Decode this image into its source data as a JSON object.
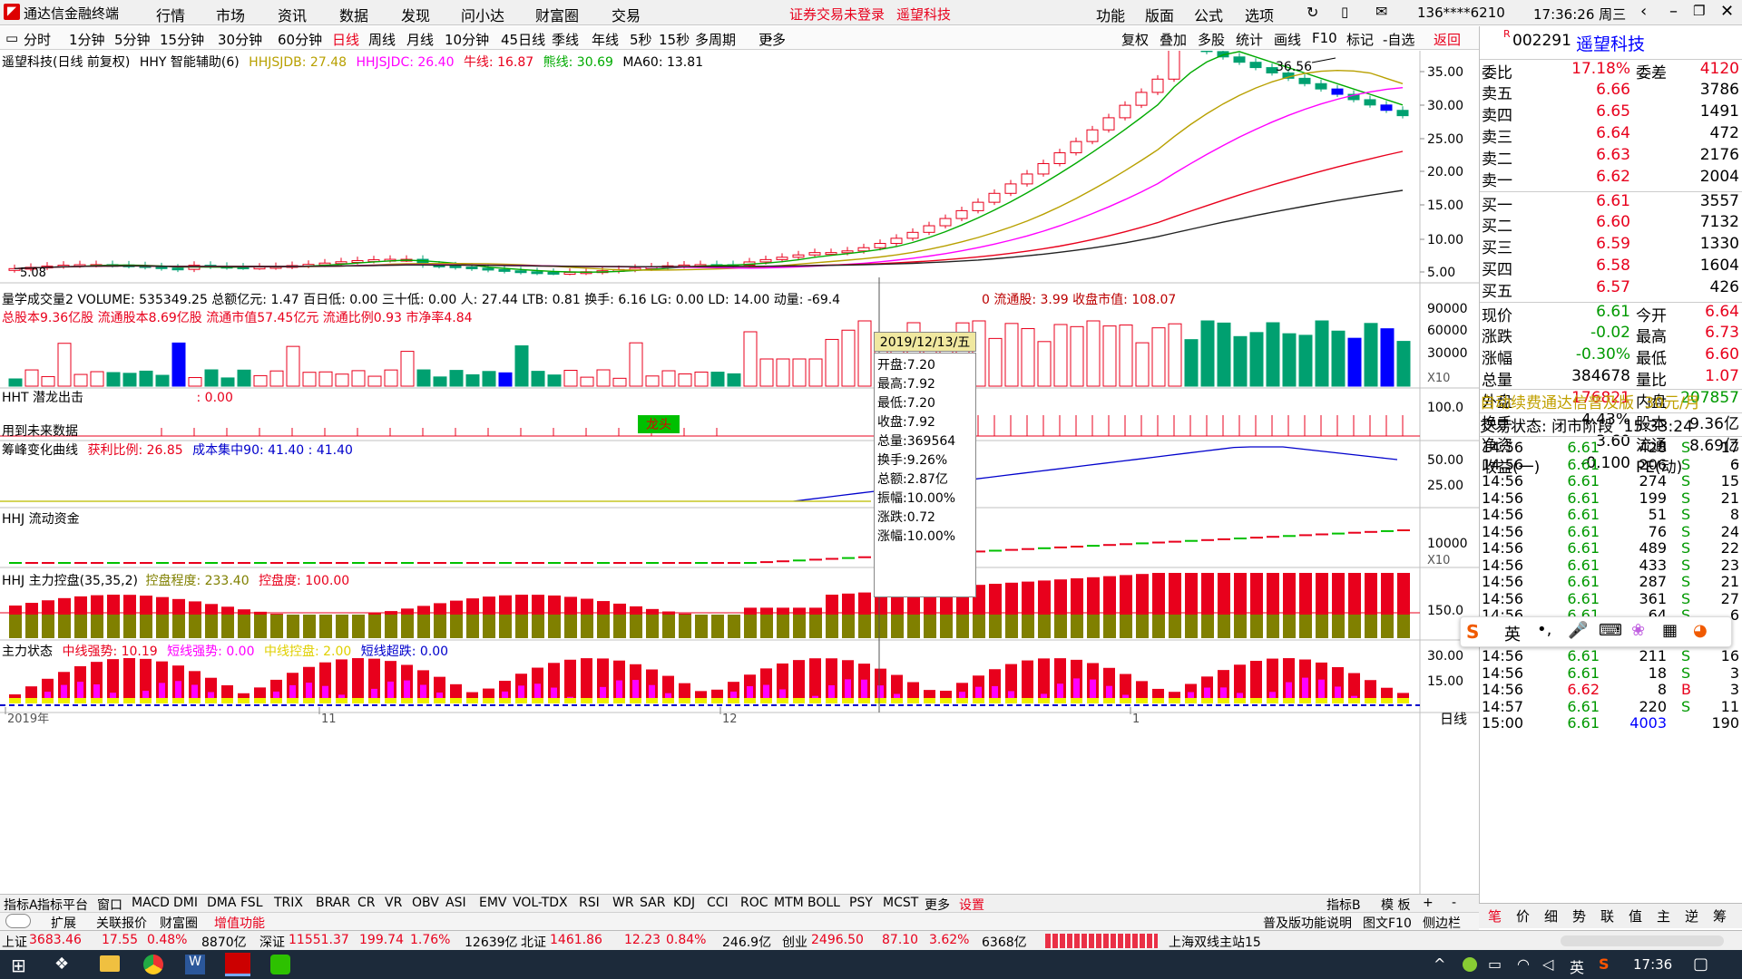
{
  "titlebar": {
    "app_title": "通达信金融终端",
    "menu": [
      "行情",
      "市场",
      "资讯",
      "数据",
      "发现",
      "问小达",
      "财富圈",
      "交易"
    ],
    "notice": "证券交易未登录",
    "stock_name": "遥望科技",
    "right_menu": [
      "功能",
      "版面",
      "公式",
      "选项"
    ],
    "account": "136****6210",
    "clock": "17:36:26 周三"
  },
  "periods": [
    "分时",
    "1分钟",
    "5分钟",
    "15分钟",
    "30分钟",
    "60分钟",
    "日线",
    "周线",
    "月线",
    "10分钟",
    "45日线",
    "季线",
    "年线",
    "5秒",
    "15秒",
    "多周期",
    "更多"
  ],
  "toolbar_right": [
    "复权",
    "叠加",
    "多股",
    "统计",
    "画线",
    "F10",
    "标记",
    "-自选",
    "返回"
  ],
  "main_header": {
    "title": "遥望科技(日线 前复权)",
    "indicator": "HHY 智能辅助(6)",
    "v1": "HHJSJDB: 27.48",
    "v2": "HHJSJDC: 26.40",
    "v3": "牛线: 16.87",
    "v4": "熊线: 30.69",
    "v5": "MA60: 13.81"
  },
  "price_axis": [
    "35.00",
    "30.00",
    "25.00",
    "20.00",
    "15.00",
    "10.00",
    "5.00"
  ],
  "high_label": "36.56",
  "low_label": "5.08",
  "volume_header": {
    "line1": "量学成交量2 VOLUME: 535349.25 总额亿元: 1.47 百日低: 0.00 三十低: 0.00 人: 27.44 LTB: 0.81 换手: 6.16 LG: 0.00 LD: 14.00 动量: -69.4",
    "line1b": "0 流通股: 3.99 收盘市值: 108.07",
    "line2": "总股本9.36亿股   流通股本8.69亿股   流通市值57.45亿元  流通比例0.93   市净率4.84"
  },
  "volume_axis": [
    "90000",
    "60000",
    "30000"
  ],
  "x10": "X10",
  "hht": {
    "title": "HHT 潜龙出击",
    "value": ": 0.00",
    "note": "用到未来数据",
    "tag": "龙头",
    "axis": "100.0"
  },
  "chip": {
    "title": "筹峰变化曲线",
    "v1": "获利比例: 26.85",
    "v2": "成本集中90: 41.40 : 41.40",
    "axis": [
      "50.00",
      "25.00"
    ]
  },
  "flow": {
    "title": "HHJ 流动资金",
    "axis": "10000",
    "x10": "X10"
  },
  "control": {
    "title": "HHJ 主力控盘(35,35,2)",
    "v1": "控盘程度: 233.40",
    "v2": "控盘度: 100.00",
    "axis": "150.0"
  },
  "status_ind": {
    "title": "主力状态",
    "v1": "中线强势: 10.19",
    "v2": "短线强势: 0.00",
    "v3": "中线控盘: 2.00",
    "v4": "短线超跌: 0.00",
    "axis": [
      "30.00",
      "15.00"
    ]
  },
  "x_axis": [
    "2019年",
    "11",
    "12",
    "1"
  ],
  "x_period": "日线",
  "tooltip": {
    "date": "2019/12/13/五",
    "rows": [
      "开盘:7.20",
      "最高:7.92",
      "最低:7.20",
      "收盘:7.92",
      "总量:369564",
      "换手:9.26%",
      "总额:2.87亿",
      "振幅:10.00%",
      "涨跌:0.72",
      "涨幅:10.00%"
    ]
  },
  "bottom_tabs": [
    "指标A",
    "指标平台",
    "窗口",
    "MACD",
    "DMI",
    "DMA",
    "FSL",
    "TRIX",
    "BRAR",
    "CR",
    "VR",
    "OBV",
    "ASI",
    "EMV",
    "VOL-TDX",
    "RSI",
    "WR",
    "SAR",
    "KDJ",
    "CCI",
    "ROC",
    "MTM",
    "BOLL",
    "PSY",
    "MCST",
    "更多",
    "设置"
  ],
  "bottom_tabs_right": [
    "指标B",
    "模 板",
    "+",
    "-"
  ],
  "bottom_tabs2": [
    "扩展",
    "关联报价",
    "财富圈",
    "增值功能"
  ],
  "bottom_tabs2_right": [
    "普及版功能说明",
    "图文F10",
    "侧边栏"
  ],
  "quote": {
    "code": "002291",
    "name": "遥望科技",
    "weibi_label": "委比",
    "weibi": "17.18%",
    "weicha_label": "委差",
    "weicha": "4120",
    "asks": [
      {
        "label": "卖五",
        "price": "6.66",
        "vol": "3786"
      },
      {
        "label": "卖四",
        "price": "6.65",
        "vol": "1491"
      },
      {
        "label": "卖三",
        "price": "6.64",
        "vol": "472"
      },
      {
        "label": "卖二",
        "price": "6.63",
        "vol": "2176"
      },
      {
        "label": "卖一",
        "price": "6.62",
        "vol": "2004"
      }
    ],
    "bids": [
      {
        "label": "买一",
        "price": "6.61",
        "vol": "3557"
      },
      {
        "label": "买二",
        "price": "6.60",
        "vol": "7132"
      },
      {
        "label": "买三",
        "price": "6.59",
        "vol": "1330"
      },
      {
        "label": "买四",
        "price": "6.58",
        "vol": "1604"
      },
      {
        "label": "买五",
        "price": "6.57",
        "vol": "426"
      }
    ],
    "stats": [
      {
        "l1": "现价",
        "v1": "6.61",
        "l2": "今开",
        "v2": "6.64"
      },
      {
        "l1": "涨跌",
        "v1": "-0.02",
        "l2": "最高",
        "v2": "6.73"
      },
      {
        "l1": "涨幅",
        "v1": "-0.30%",
        "l2": "最低",
        "v2": "6.60"
      },
      {
        "l1": "总量",
        "v1": "384678",
        "l2": "量比",
        "v2": "1.07"
      },
      {
        "l1": "外盘",
        "v1": "176821",
        "l2": "内盘",
        "v2": "207857"
      },
      {
        "l1": "换手",
        "v1": "4.43%",
        "l2": "股本",
        "v2": "9.36亿"
      },
      {
        "l1": "净资",
        "v1": "3.60",
        "l2": "流通",
        "v2": "8.69亿"
      },
      {
        "l1": "收益(一)",
        "v1": "-0.100",
        "l2": "PE(动)",
        "v2": "-"
      }
    ],
    "promo": "自动续费通达信普及版",
    "promo_price": "30元/月",
    "trade_state_label": "交易状态:",
    "trade_state": "闭市阶段",
    "trade_time": "15:33:24"
  },
  "ticks": [
    {
      "t": "14:56",
      "p": "6.61",
      "v": "428",
      "s": "S",
      "n": "17"
    },
    {
      "t": "14:56",
      "p": "6.61",
      "v": "206",
      "s": "S",
      "n": "6"
    },
    {
      "t": "14:56",
      "p": "6.61",
      "v": "274",
      "s": "S",
      "n": "15"
    },
    {
      "t": "14:56",
      "p": "6.61",
      "v": "199",
      "s": "S",
      "n": "21"
    },
    {
      "t": "14:56",
      "p": "6.61",
      "v": "51",
      "s": "S",
      "n": "8"
    },
    {
      "t": "14:56",
      "p": "6.61",
      "v": "76",
      "s": "S",
      "n": "24"
    },
    {
      "t": "14:56",
      "p": "6.61",
      "v": "489",
      "s": "S",
      "n": "22"
    },
    {
      "t": "14:56",
      "p": "6.61",
      "v": "433",
      "s": "S",
      "n": "23"
    },
    {
      "t": "14:56",
      "p": "6.61",
      "v": "287",
      "s": "S",
      "n": "21"
    },
    {
      "t": "14:56",
      "p": "6.61",
      "v": "361",
      "s": "S",
      "n": "27"
    },
    {
      "t": "14:56",
      "p": "6.61",
      "v": "64",
      "s": "S",
      "n": "6"
    },
    {
      "t": "14:56",
      "p": "6.61",
      "v": "211",
      "s": "S",
      "n": "16"
    },
    {
      "t": "14:56",
      "p": "6.61",
      "v": "18",
      "s": "S",
      "n": "3"
    },
    {
      "t": "14:56",
      "p": "6.62",
      "v": "8",
      "s": "B",
      "n": "3"
    },
    {
      "t": "14:57",
      "p": "6.61",
      "v": "220",
      "s": "S",
      "n": "11"
    },
    {
      "t": "15:00",
      "p": "6.61",
      "v": "4003",
      "s": "",
      "n": "190"
    }
  ],
  "ime": {
    "lang": "英"
  },
  "right_tabs": [
    "笔",
    "价",
    "细",
    "势",
    "联",
    "值",
    "主",
    "逆",
    "筹"
  ],
  "status": {
    "sh_label": "上证",
    "sh": "3683.46",
    "sh_chg": "17.55",
    "sh_pct": "0.48%",
    "sh_amt": "8870亿",
    "sz_label": "深证",
    "sz": "11551.37",
    "sz_chg": "199.74",
    "sz_pct": "1.76%",
    "sz_amt": "12639亿",
    "bz_label": "北证",
    "bz": "1461.86",
    "bz_chg": "12.23",
    "bz_pct": "0.84%",
    "bz_amt": "246.9亿",
    "cy_label": "创业",
    "cy": "2496.50",
    "cy_chg": "87.10",
    "cy_pct": "3.62%",
    "cy_amt": "6368亿",
    "server": "上海双线主站15"
  },
  "taskbar": {
    "clock": "17:36",
    "ime": "英"
  },
  "colors": {
    "up": "#e8001c",
    "down": "#00a070",
    "blue": "#0000ff",
    "purple": "#a020f0",
    "magenta": "#ff00ff"
  }
}
